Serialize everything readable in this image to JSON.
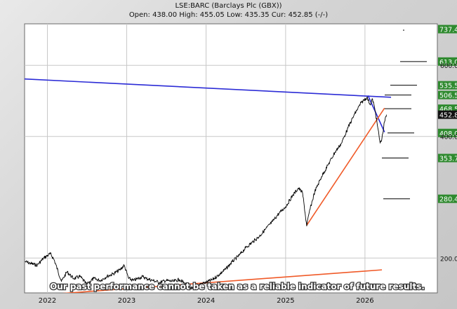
{
  "header": {
    "symbol_line": "LSE:BARC (Barclays Plc (GBX))",
    "quote_line": "Open: 438.00 High: 455.05 Low: 435.35 Cur: 452.85 (-/-)"
  },
  "disclaimer": "Our past performance cannot be taken as a reliable indicator of future results.",
  "colors": {
    "price_line": "#000000",
    "trend_blue": "#2b2bd6",
    "trend_red": "#f05a28",
    "tag_green": "#2f8a2f",
    "tag_current": "#111111",
    "grid": "#c8c8c8"
  },
  "chart_data": {
    "type": "line",
    "title": "LSE:BARC (Barclays Plc (GBX))",
    "xlabel": "",
    "ylabel": "",
    "y_scale": "log",
    "ylim": [
      164,
      760
    ],
    "xlim": [
      "2021-09-18",
      "2026-11-30"
    ],
    "grid": true,
    "x_ticks": [
      {
        "label": "2022",
        "date": "2022-01-01"
      },
      {
        "label": "2023",
        "date": "2023-01-01"
      },
      {
        "label": "2024",
        "date": "2024-01-01"
      },
      {
        "label": "2025",
        "date": "2025-01-01"
      },
      {
        "label": "2026",
        "date": "2026-01-01"
      }
    ],
    "y_ticks": [
      {
        "label": "200.0",
        "value": 200
      },
      {
        "label": "400.0",
        "value": 400
      },
      {
        "label": "600.0",
        "value": 600
      }
    ],
    "series": [
      {
        "role": "price",
        "points": [
          [
            "2021-09-20",
            196
          ],
          [
            "2021-10-15",
            194
          ],
          [
            "2021-11-15",
            192
          ],
          [
            "2021-12-15",
            200
          ],
          [
            "2022-01-15",
            205
          ],
          [
            "2022-02-01",
            198
          ],
          [
            "2022-03-07",
            175
          ],
          [
            "2022-04-01",
            185
          ],
          [
            "2022-05-01",
            178
          ],
          [
            "2022-06-01",
            180
          ],
          [
            "2022-07-01",
            172
          ],
          [
            "2022-08-01",
            178
          ],
          [
            "2022-09-01",
            176
          ],
          [
            "2022-10-01",
            180
          ],
          [
            "2022-11-01",
            183
          ],
          [
            "2022-12-01",
            187
          ],
          [
            "2022-12-20",
            192
          ],
          [
            "2023-01-10",
            178
          ],
          [
            "2023-02-01",
            176
          ],
          [
            "2023-03-15",
            180
          ],
          [
            "2023-04-01",
            178
          ],
          [
            "2023-05-01",
            176
          ],
          [
            "2023-06-01",
            174
          ],
          [
            "2023-07-01",
            176
          ],
          [
            "2023-08-01",
            175
          ],
          [
            "2023-09-01",
            177
          ],
          [
            "2023-10-01",
            172
          ],
          [
            "2023-10-30",
            168
          ],
          [
            "2023-12-01",
            172
          ],
          [
            "2024-01-01",
            174
          ],
          [
            "2024-02-01",
            177
          ],
          [
            "2024-03-01",
            182
          ],
          [
            "2024-04-01",
            188
          ],
          [
            "2024-05-01",
            196
          ],
          [
            "2024-06-01",
            203
          ],
          [
            "2024-07-01",
            212
          ],
          [
            "2024-08-01",
            219
          ],
          [
            "2024-09-01",
            226
          ],
          [
            "2024-10-01",
            236
          ],
          [
            "2024-11-01",
            246
          ],
          [
            "2024-12-01",
            258
          ],
          [
            "2025-01-01",
            268
          ],
          [
            "2025-02-01",
            285
          ],
          [
            "2025-03-01",
            298
          ],
          [
            "2025-03-20",
            290
          ],
          [
            "2025-04-08",
            240
          ],
          [
            "2025-04-20",
            260
          ],
          [
            "2025-05-15",
            292
          ],
          [
            "2025-06-15",
            318
          ],
          [
            "2025-07-15",
            340
          ],
          [
            "2025-08-15",
            365
          ],
          [
            "2025-09-15",
            385
          ],
          [
            "2025-10-15",
            420
          ],
          [
            "2025-11-15",
            455
          ],
          [
            "2025-12-15",
            485
          ],
          [
            "2026-01-10",
            500
          ],
          [
            "2026-01-25",
            480
          ],
          [
            "2026-02-05",
            495
          ],
          [
            "2026-02-18",
            460
          ],
          [
            "2026-03-01",
            420
          ],
          [
            "2026-03-12",
            385
          ],
          [
            "2026-03-20",
            395
          ],
          [
            "2026-04-01",
            435
          ],
          [
            "2026-04-10",
            452.85
          ]
        ]
      }
    ],
    "trend_lines": [
      {
        "color": "blue",
        "from": [
          "2021-09-18",
          555
        ],
        "to": [
          "2026-05-01",
          500
        ]
      },
      {
        "color": "blue",
        "from": [
          "2026-01-15",
          505
        ],
        "to": [
          "2026-04-01",
          410
        ]
      },
      {
        "color": "red",
        "from": [
          "2021-12-01",
          162
        ],
        "to": [
          "2026-03-20",
          187
        ]
      },
      {
        "color": "red",
        "from": [
          "2025-04-08",
          241
        ],
        "to": [
          "2026-04-01",
          470
        ]
      }
    ],
    "price_targets": [
      {
        "value": 737.4,
        "label": "737.4",
        "kind": "target"
      },
      {
        "value": 613.0,
        "label": "613.0",
        "kind": "target"
      },
      {
        "value": 535.5,
        "label": "535.5",
        "kind": "target"
      },
      {
        "value": 506.5,
        "label": "506.5",
        "kind": "target"
      },
      {
        "value": 468.5,
        "label": "468.5",
        "kind": "target"
      },
      {
        "value": 452.85,
        "label": "452.8",
        "kind": "current"
      },
      {
        "value": 408.0,
        "label": "408.0",
        "kind": "target"
      },
      {
        "value": 353.7,
        "label": "353.7",
        "kind": "target"
      },
      {
        "value": 280.4,
        "label": "280.4",
        "kind": "target"
      }
    ]
  }
}
